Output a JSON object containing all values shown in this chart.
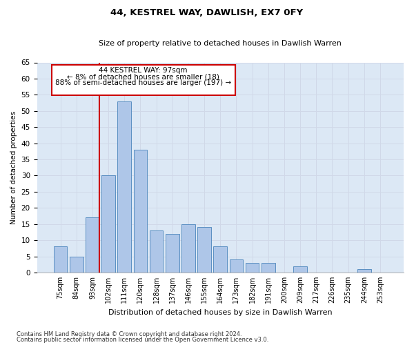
{
  "title": "44, KESTREL WAY, DAWLISH, EX7 0FY",
  "subtitle": "Size of property relative to detached houses in Dawlish Warren",
  "xlabel": "Distribution of detached houses by size in Dawlish Warren",
  "ylabel": "Number of detached properties",
  "categories": [
    "75sqm",
    "84sqm",
    "93sqm",
    "102sqm",
    "111sqm",
    "120sqm",
    "128sqm",
    "137sqm",
    "146sqm",
    "155sqm",
    "164sqm",
    "173sqm",
    "182sqm",
    "191sqm",
    "200sqm",
    "209sqm",
    "217sqm",
    "226sqm",
    "235sqm",
    "244sqm",
    "253sqm"
  ],
  "values": [
    8,
    5,
    17,
    30,
    53,
    38,
    13,
    12,
    15,
    14,
    8,
    4,
    3,
    3,
    0,
    2,
    0,
    0,
    0,
    1,
    0
  ],
  "bar_color": "#aec6e8",
  "bar_edge_color": "#5a8fc2",
  "vline_color": "#cc0000",
  "ylim": [
    0,
    65
  ],
  "yticks": [
    0,
    5,
    10,
    15,
    20,
    25,
    30,
    35,
    40,
    45,
    50,
    55,
    60,
    65
  ],
  "annotation_title": "44 KESTREL WAY: 97sqm",
  "annotation_line1": "← 8% of detached houses are smaller (18)",
  "annotation_line2": "88% of semi-detached houses are larger (197) →",
  "annotation_box_color": "#cc0000",
  "footnote1": "Contains HM Land Registry data © Crown copyright and database right 2024.",
  "footnote2": "Contains public sector information licensed under the Open Government Licence v3.0.",
  "grid_color": "#d0d8e8",
  "background_color": "#dce8f5"
}
